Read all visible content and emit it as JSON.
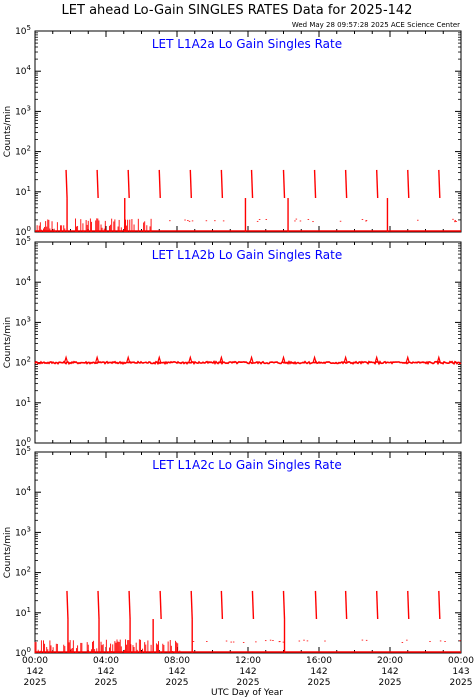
{
  "header": {
    "title": "LET ahead Lo-Gain SINGLES RATES Data for 2025-142",
    "timestamp": "Wed May 28 09:57:28 2025 ACE Science Center"
  },
  "colors": {
    "data": "#ff0000",
    "panel_title": "#0000ff",
    "axis": "#000000"
  },
  "chart_data": [
    {
      "type": "line",
      "title": "LET L1A2a Lo Gain Singles Rate",
      "ylabel": "Counts/min",
      "yscale": "log",
      "ylim": [
        1,
        100000
      ],
      "xlim": [
        0,
        24
      ],
      "x_unit": "UTC hour of day 142",
      "baseline": 1,
      "periodic_spikes": {
        "hours": [
          1.75,
          3.5,
          5.25,
          7.0,
          8.75,
          10.5,
          12.2,
          14.0,
          15.75,
          17.5,
          19.25,
          21.0,
          22.75
        ],
        "peak": 35,
        "trough": 7
      },
      "deep_spikes": [
        1.75,
        5.0,
        11.8,
        14.2,
        19.8
      ],
      "low_noise": {
        "from": 0,
        "to": 6.6,
        "max": 2.2
      }
    },
    {
      "type": "line",
      "title": "LET L1A2b Lo Gain Singles Rate",
      "ylabel": "Counts/min",
      "yscale": "log",
      "ylim": [
        1,
        100000
      ],
      "xlim": [
        0,
        24
      ],
      "x_unit": "UTC hour of day 142",
      "baseline": 100,
      "periodic_spikes": {
        "hours": [
          1.75,
          3.5,
          5.25,
          7.0,
          8.75,
          10.5,
          12.2,
          14.0,
          15.75,
          17.5,
          19.25,
          21.0,
          22.75
        ],
        "peak": 135
      }
    },
    {
      "type": "line",
      "title": "LET L1A2c Lo Gain Singles Rate",
      "ylabel": "Counts/min",
      "yscale": "log",
      "ylim": [
        1,
        100000
      ],
      "xlim": [
        0,
        24
      ],
      "x_unit": "UTC hour of day 142",
      "baseline": 1,
      "periodic_spikes": {
        "hours": [
          1.8,
          3.55,
          5.3,
          7.05,
          8.8,
          10.5,
          12.25,
          14.0,
          15.8,
          17.5,
          19.25,
          21.0,
          22.75
        ],
        "peak": 35,
        "trough": 7
      },
      "deep_spikes": [
        1.8,
        3.55,
        5.3,
        6.6,
        8.8,
        14.0
      ],
      "low_noise": {
        "from": 0,
        "to": 8.2,
        "max": 2.2
      }
    }
  ],
  "y_ticks": [
    {
      "base": "10",
      "exp": "0"
    },
    {
      "base": "10",
      "exp": "1"
    },
    {
      "base": "10",
      "exp": "2"
    },
    {
      "base": "10",
      "exp": "3"
    },
    {
      "base": "10",
      "exp": "4"
    },
    {
      "base": "10",
      "exp": "5"
    }
  ],
  "x_ticks": [
    {
      "hour": 0,
      "time": "00:00",
      "doy": "142",
      "year": "2025"
    },
    {
      "hour": 4,
      "time": "04:00",
      "doy": "142",
      "year": "2025"
    },
    {
      "hour": 8,
      "time": "08:00",
      "doy": "142",
      "year": "2025"
    },
    {
      "hour": 12,
      "time": "12:00",
      "doy": "142",
      "year": "2025"
    },
    {
      "hour": 16,
      "time": "16:00",
      "doy": "142",
      "year": "2025"
    },
    {
      "hour": 20,
      "time": "20:00",
      "doy": "142",
      "year": "2025"
    },
    {
      "hour": 24,
      "time": "00:00",
      "doy": "143",
      "year": "2025"
    }
  ],
  "xlabel": "UTC Day of Year"
}
